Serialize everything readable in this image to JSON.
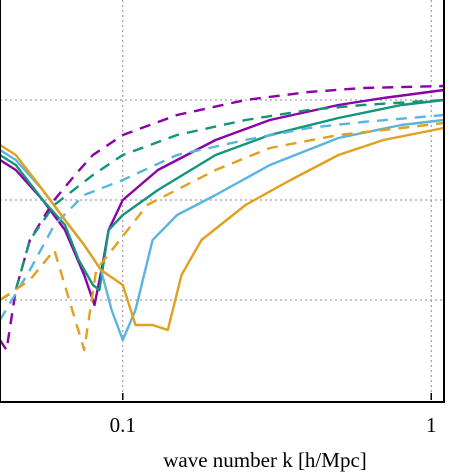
{
  "chart_data": {
    "type": "line",
    "title": "",
    "xlabel": "wave number k [h/Mpc]",
    "ylabel": "",
    "x_scale": "log",
    "xlim": [
      0.04,
      1.1
    ],
    "ylim": [
      0,
      4
    ],
    "x_ticks": [
      {
        "value": 0.1,
        "label": "0.1"
      },
      {
        "value": 1,
        "label": "1"
      }
    ],
    "y_gridlines": [
      1,
      2,
      3
    ],
    "grid": true,
    "legend": "none",
    "series": [
      {
        "color": "#8b00a8",
        "dash": false,
        "points": [
          [
            0.04,
            2.4
          ],
          [
            0.045,
            2.3
          ],
          [
            0.055,
            2.0
          ],
          [
            0.065,
            1.7
          ],
          [
            0.075,
            1.25
          ],
          [
            0.081,
            0.95
          ],
          [
            0.086,
            1.35
          ],
          [
            0.09,
            1.7
          ],
          [
            0.1,
            2.0
          ],
          [
            0.13,
            2.3
          ],
          [
            0.2,
            2.6
          ],
          [
            0.3,
            2.8
          ],
          [
            0.5,
            2.95
          ],
          [
            0.7,
            3.02
          ],
          [
            1.1,
            3.1
          ]
        ]
      },
      {
        "color": "#8b00a8",
        "dash": true,
        "points": [
          [
            0.04,
            0.6
          ],
          [
            0.042,
            0.5
          ],
          [
            0.045,
            1.1
          ],
          [
            0.05,
            1.6
          ],
          [
            0.06,
            2.0
          ],
          [
            0.07,
            2.25
          ],
          [
            0.08,
            2.45
          ],
          [
            0.1,
            2.65
          ],
          [
            0.15,
            2.85
          ],
          [
            0.25,
            3.0
          ],
          [
            0.4,
            3.08
          ],
          [
            0.6,
            3.12
          ],
          [
            1.1,
            3.14
          ]
        ]
      },
      {
        "color": "#12957a",
        "dash": false,
        "points": [
          [
            0.04,
            2.45
          ],
          [
            0.045,
            2.35
          ],
          [
            0.055,
            2.0
          ],
          [
            0.065,
            1.75
          ],
          [
            0.072,
            1.4
          ],
          [
            0.08,
            1.15
          ],
          [
            0.084,
            1.1
          ],
          [
            0.09,
            1.7
          ],
          [
            0.1,
            1.85
          ],
          [
            0.13,
            2.1
          ],
          [
            0.2,
            2.45
          ],
          [
            0.3,
            2.65
          ],
          [
            0.5,
            2.82
          ],
          [
            0.8,
            2.95
          ],
          [
            1.1,
            3.0
          ]
        ]
      },
      {
        "color": "#12957a",
        "dash": true,
        "points": [
          [
            0.04,
            1.0
          ],
          [
            0.045,
            1.1
          ],
          [
            0.05,
            1.6
          ],
          [
            0.06,
            1.95
          ],
          [
            0.08,
            2.25
          ],
          [
            0.1,
            2.45
          ],
          [
            0.15,
            2.65
          ],
          [
            0.25,
            2.8
          ],
          [
            0.4,
            2.9
          ],
          [
            0.6,
            2.95
          ],
          [
            1.1,
            3.0
          ]
        ]
      },
      {
        "color": "#5ab4e0",
        "dash": false,
        "points": [
          [
            0.04,
            2.5
          ],
          [
            0.045,
            2.4
          ],
          [
            0.055,
            2.1
          ],
          [
            0.065,
            1.8
          ],
          [
            0.075,
            1.55
          ],
          [
            0.085,
            1.3
          ],
          [
            0.092,
            0.9
          ],
          [
            0.1,
            0.6
          ],
          [
            0.11,
            0.9
          ],
          [
            0.125,
            1.6
          ],
          [
            0.15,
            1.85
          ],
          [
            0.2,
            2.05
          ],
          [
            0.3,
            2.35
          ],
          [
            0.5,
            2.62
          ],
          [
            0.8,
            2.75
          ],
          [
            1.1,
            2.8
          ]
        ]
      },
      {
        "color": "#5ab4e0",
        "dash": true,
        "points": [
          [
            0.04,
            0.8
          ],
          [
            0.05,
            1.3
          ],
          [
            0.06,
            1.75
          ],
          [
            0.075,
            2.05
          ],
          [
            0.1,
            2.2
          ],
          [
            0.15,
            2.45
          ],
          [
            0.25,
            2.6
          ],
          [
            0.4,
            2.72
          ],
          [
            0.6,
            2.78
          ],
          [
            1.1,
            2.85
          ]
        ]
      },
      {
        "color": "#e0a020",
        "dash": false,
        "points": [
          [
            0.04,
            2.55
          ],
          [
            0.045,
            2.45
          ],
          [
            0.055,
            2.1
          ],
          [
            0.065,
            1.8
          ],
          [
            0.075,
            1.55
          ],
          [
            0.085,
            1.3
          ],
          [
            0.1,
            1.15
          ],
          [
            0.11,
            0.75
          ],
          [
            0.125,
            0.75
          ],
          [
            0.14,
            0.7
          ],
          [
            0.155,
            1.25
          ],
          [
            0.18,
            1.6
          ],
          [
            0.25,
            1.95
          ],
          [
            0.35,
            2.2
          ],
          [
            0.5,
            2.45
          ],
          [
            0.7,
            2.6
          ],
          [
            1.1,
            2.72
          ]
        ]
      },
      {
        "color": "#e0a020",
        "dash": true,
        "points": [
          [
            0.04,
            1.0
          ],
          [
            0.05,
            1.2
          ],
          [
            0.06,
            1.5
          ],
          [
            0.075,
            0.5
          ],
          [
            0.082,
            1.3
          ],
          [
            0.095,
            1.55
          ],
          [
            0.12,
            1.95
          ],
          [
            0.2,
            2.3
          ],
          [
            0.3,
            2.52
          ],
          [
            0.5,
            2.65
          ],
          [
            0.8,
            2.72
          ],
          [
            1.1,
            2.77
          ]
        ]
      }
    ]
  }
}
